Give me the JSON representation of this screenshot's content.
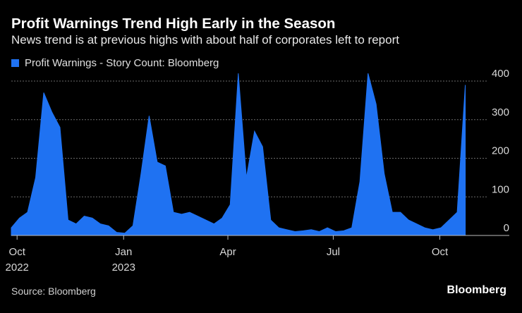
{
  "title": "Profit Warnings Trend High Early in the Season",
  "subtitle": "News trend is at previous highs with about half of corporates left to report",
  "source": "Source: Bloomberg",
  "brand": "Bloomberg",
  "colors": {
    "series": "#1f72f2",
    "background": "#000000",
    "grid": "#6a6a6a"
  },
  "chart_data": {
    "type": "area",
    "series": [
      {
        "name": "Profit Warnings - Story Count: Bloomberg",
        "color": "#1f72f2",
        "x": [
          "2022-09-26",
          "2022-10-03",
          "2022-10-10",
          "2022-10-17",
          "2022-10-24",
          "2022-10-31",
          "2022-11-07",
          "2022-11-14",
          "2022-11-21",
          "2022-11-28",
          "2022-12-05",
          "2022-12-12",
          "2022-12-19",
          "2022-12-26",
          "2023-01-02",
          "2023-01-09",
          "2023-01-16",
          "2023-01-23",
          "2023-01-30",
          "2023-02-06",
          "2023-02-13",
          "2023-02-20",
          "2023-02-27",
          "2023-03-06",
          "2023-03-13",
          "2023-03-20",
          "2023-03-27",
          "2023-04-03",
          "2023-04-10",
          "2023-04-17",
          "2023-04-24",
          "2023-05-01",
          "2023-05-08",
          "2023-05-15",
          "2023-05-22",
          "2023-05-29",
          "2023-06-05",
          "2023-06-12",
          "2023-06-19",
          "2023-06-26",
          "2023-07-03",
          "2023-07-10",
          "2023-07-17",
          "2023-07-24",
          "2023-07-31",
          "2023-08-07",
          "2023-08-14",
          "2023-08-21",
          "2023-08-28",
          "2023-09-04",
          "2023-09-11",
          "2023-09-18",
          "2023-09-25",
          "2023-10-02",
          "2023-10-09",
          "2023-10-16",
          "2023-10-23"
        ],
        "values": [
          20,
          45,
          60,
          150,
          370,
          320,
          280,
          40,
          30,
          50,
          45,
          30,
          25,
          8,
          6,
          25,
          160,
          310,
          190,
          180,
          60,
          55,
          60,
          50,
          40,
          30,
          45,
          80,
          420,
          150,
          270,
          230,
          40,
          20,
          15,
          10,
          12,
          15,
          10,
          20,
          10,
          12,
          20,
          140,
          420,
          340,
          160,
          60,
          60,
          40,
          30,
          20,
          15,
          20,
          40,
          60,
          390
        ]
      }
    ],
    "ylim": [
      0,
      400
    ],
    "yticks": [
      0,
      100,
      200,
      300,
      400
    ],
    "xticks": [
      {
        "date": "2022-10-01",
        "label": "Oct",
        "sublabel": "2022"
      },
      {
        "date": "2023-01-01",
        "label": "Jan",
        "sublabel": "2023"
      },
      {
        "date": "2023-04-01",
        "label": "Apr",
        "sublabel": ""
      },
      {
        "date": "2023-07-01",
        "label": "Jul",
        "sublabel": ""
      },
      {
        "date": "2023-10-01",
        "label": "Oct",
        "sublabel": ""
      }
    ],
    "xlim": [
      "2022-09-26",
      "2023-11-30"
    ],
    "grid": true,
    "legend_position": "top-left"
  }
}
